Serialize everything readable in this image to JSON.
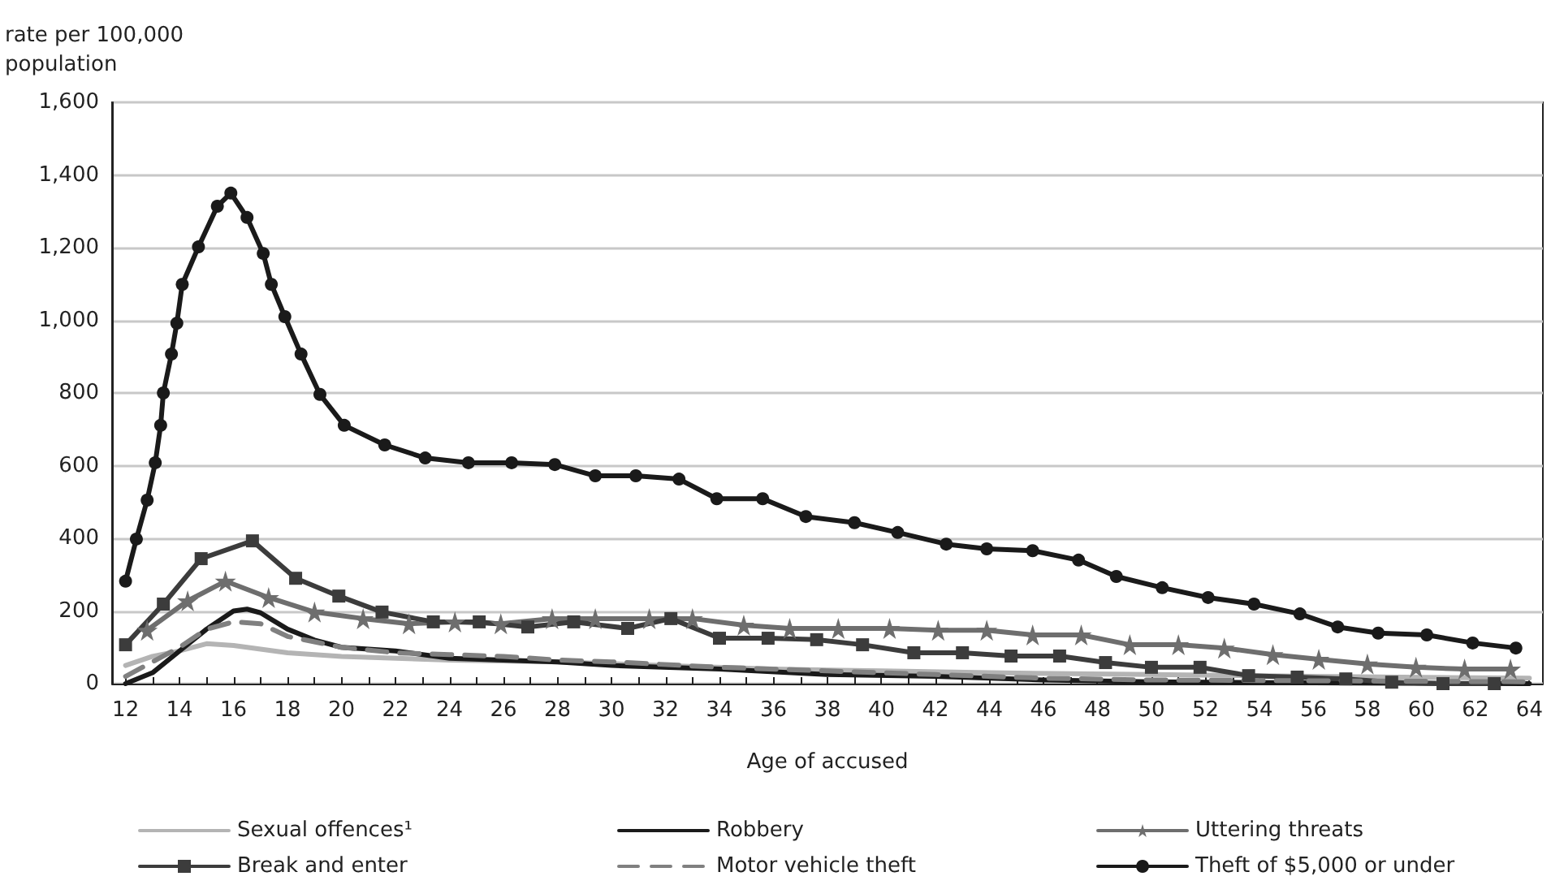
{
  "chart_data": {
    "type": "line",
    "xlabel": "Age of accused",
    "ylabel": "rate per 100,000\npopulation",
    "xlim": [
      11.5,
      64.5
    ],
    "xticks": [
      12,
      {
        "value": 13,
        "label": null
      },
      14,
      {
        "value": 15,
        "label": null
      },
      16,
      {
        "value": 17,
        "label": null
      },
      18,
      {
        "value": 19,
        "label": null
      },
      20,
      {
        "value": 21,
        "label": null
      },
      22,
      {
        "value": 23,
        "label": null
      },
      24,
      {
        "value": 25,
        "label": null
      },
      26,
      {
        "value": 27,
        "label": null
      },
      28,
      {
        "value": 29,
        "label": null
      },
      30,
      {
        "value": 31,
        "label": null
      },
      32,
      {
        "value": 33,
        "label": null
      },
      34,
      {
        "value": 35,
        "label": null
      },
      36,
      {
        "value": 37,
        "label": null
      },
      38,
      {
        "value": 39,
        "label": null
      },
      40,
      {
        "value": 41,
        "label": null
      },
      42,
      {
        "value": 43,
        "label": null
      },
      44,
      {
        "value": 45,
        "label": null
      },
      46,
      {
        "value": 47,
        "label": null
      },
      48,
      {
        "value": 49,
        "label": null
      },
      50,
      {
        "value": 51,
        "label": null
      },
      52,
      {
        "value": 53,
        "label": null
      },
      54,
      {
        "value": 55,
        "label": null
      },
      56,
      {
        "value": 57,
        "label": null
      },
      58,
      {
        "value": 59,
        "label": null
      },
      60,
      {
        "value": 61,
        "label": null
      },
      62,
      {
        "value": 63,
        "label": null
      },
      64
    ],
    "ylim": [
      0,
      1600
    ],
    "yticks": [
      0,
      200,
      400,
      600,
      800,
      {
        "value": 1000,
        "label": "1,000"
      },
      {
        "value": 1200,
        "label": "1,200"
      },
      {
        "value": 1400,
        "label": "1,400"
      },
      {
        "value": 1600,
        "label": "1,600"
      }
    ],
    "grid": "y",
    "legend": "bottom",
    "series": [
      {
        "name": "Sexual offences¹",
        "color": "#b4b4b4",
        "marker": "none",
        "line_style": "solid",
        "x": [
          12,
          13,
          14,
          15,
          16,
          17,
          18,
          20,
          24,
          28,
          32,
          36,
          40,
          44,
          50,
          56,
          64
        ],
        "values": [
          50,
          75,
          90,
          110,
          105,
          95,
          85,
          75,
          65,
          60,
          50,
          40,
          35,
          30,
          25,
          20,
          15
        ]
      },
      {
        "name": "Robbery",
        "color": "#1a1a1a",
        "marker": "none",
        "line_style": "solid",
        "x": [
          12,
          13,
          14,
          15,
          16,
          16.5,
          17,
          18,
          19,
          20,
          22,
          24,
          28,
          30,
          34,
          38,
          42,
          46,
          50,
          56,
          64
        ],
        "values": [
          0,
          30,
          90,
          150,
          200,
          205,
          195,
          150,
          120,
          100,
          90,
          70,
          60,
          50,
          40,
          25,
          20,
          10,
          5,
          2,
          0
        ]
      },
      {
        "name": "Uttering threats",
        "color": "#6e6e6e",
        "marker": "star",
        "line_style": "solid",
        "x": [
          12.8,
          14.3,
          15.7,
          17.3,
          19.0,
          20.8,
          22.5,
          24.2,
          25.9,
          27.8,
          29.4,
          31.4,
          33.0,
          34.9,
          36.6,
          38.4,
          40.3,
          42.1,
          43.9,
          45.6,
          47.4,
          49.2,
          51.0,
          52.7,
          54.5,
          56.2,
          58.0,
          59.8,
          61.6,
          63.3
        ],
        "values": [
          147,
          228,
          282,
          237,
          197,
          179,
          165,
          170,
          165,
          179,
          179,
          179,
          179,
          161,
          152,
          152,
          152,
          147,
          147,
          134,
          134,
          107,
          107,
          98,
          80,
          67,
          54,
          45,
          40,
          40
        ]
      },
      {
        "name": "Break and enter",
        "color": "#3c3c3c",
        "marker": "square",
        "line_style": "solid",
        "x": [
          12,
          13.4,
          14.8,
          16.7,
          18.3,
          19.9,
          21.5,
          23.4,
          25.1,
          26.9,
          28.6,
          30.6,
          32.2,
          34.0,
          35.8,
          37.6,
          39.3,
          41.2,
          43.0,
          44.8,
          46.6,
          48.3,
          50.0,
          51.8,
          53.6,
          55.4,
          57.2,
          58.9,
          60.8,
          62.7
        ],
        "values": [
          107,
          219,
          344,
          393,
          290,
          241,
          197,
          170,
          170,
          156,
          170,
          152,
          179,
          125,
          125,
          121,
          107,
          85,
          85,
          76,
          76,
          58,
          45,
          45,
          22,
          18,
          13,
          4,
          0,
          0
        ]
      },
      {
        "name": "Motor vehicle theft",
        "color": "#808080",
        "marker": "none",
        "line_style": "dashed",
        "x": [
          12,
          13,
          14,
          15,
          16,
          17,
          18,
          20,
          22,
          24,
          26,
          28,
          30,
          34,
          38,
          42,
          46,
          50,
          56,
          64
        ],
        "values": [
          20,
          60,
          100,
          150,
          170,
          165,
          130,
          100,
          85,
          80,
          75,
          65,
          60,
          45,
          35,
          25,
          15,
          10,
          8,
          5
        ]
      },
      {
        "name": "Theft of $5,000 or under",
        "color": "#1a1a1a",
        "marker": "circle",
        "line_style": "solid",
        "x": [
          12,
          12.4,
          12.8,
          13.1,
          13.3,
          13.4,
          13.7,
          13.9,
          14.1,
          14.7,
          15.4,
          15.9,
          16.5,
          17.1,
          17.4,
          17.9,
          18.5,
          19.2,
          20.1,
          21.6,
          23.1,
          24.7,
          26.3,
          27.9,
          29.4,
          30.9,
          32.5,
          33.9,
          35.6,
          37.2,
          39.0,
          40.6,
          42.4,
          43.9,
          45.6,
          47.3,
          48.7,
          50.4,
          52.1,
          53.8,
          55.5,
          56.9,
          58.4,
          60.2,
          61.9,
          63.5
        ],
        "values": [
          282,
          398,
          505,
          608,
          711,
          800,
          907,
          992,
          1099,
          1202,
          1314,
          1350,
          1283,
          1184,
          1099,
          1010,
          907,
          796,
          711,
          657,
          621,
          608,
          608,
          603,
          572,
          572,
          563,
          509,
          509,
          460,
          443,
          416,
          384,
          371,
          366,
          340,
          295,
          264,
          237,
          219,
          192,
          156,
          139,
          134,
          112,
          98
        ]
      }
    ]
  }
}
